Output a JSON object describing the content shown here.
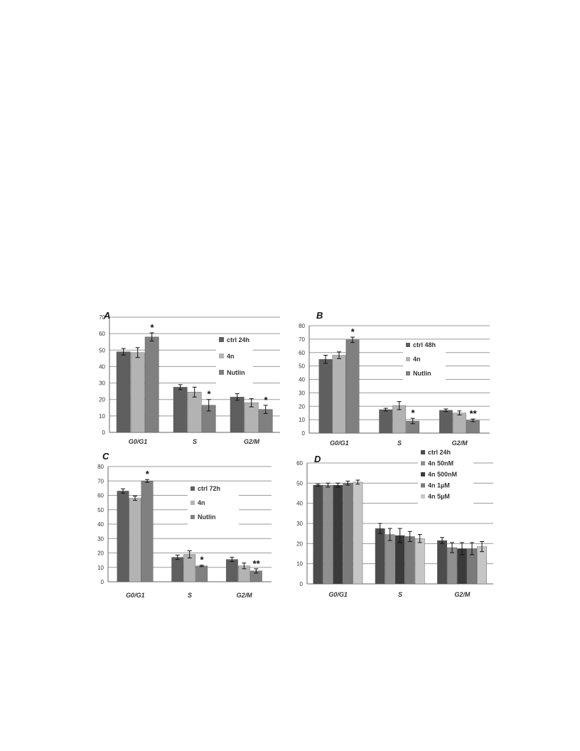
{
  "chart_data": [
    {
      "type": "bar",
      "panel_label": "A",
      "categories": [
        "G0/G1",
        "S",
        "G2/M"
      ],
      "ylim": [
        0,
        70
      ],
      "yticks": [
        0,
        10,
        20,
        30,
        40,
        50,
        60,
        70
      ],
      "grid": true,
      "legend_position": "right",
      "series": [
        {
          "name": "ctrl 24h",
          "color": "#5f5f5f",
          "values": [
            49,
            27.5,
            21.5
          ],
          "errors": [
            2,
            1.5,
            2
          ]
        },
        {
          "name": "4n",
          "color": "#b3b3b3",
          "values": [
            48.5,
            24.5,
            18
          ],
          "errors": [
            3,
            3,
            2.5
          ]
        },
        {
          "name": "Nutlin",
          "color": "#808080",
          "values": [
            58,
            16.5,
            14
          ],
          "errors": [
            2.5,
            3.5,
            2.5
          ]
        }
      ],
      "annotations": [
        {
          "series": 2,
          "category": 0,
          "text": "*"
        },
        {
          "series": 2,
          "category": 1,
          "text": "*"
        },
        {
          "series": 2,
          "category": 2,
          "text": "*"
        }
      ]
    },
    {
      "type": "bar",
      "panel_label": "B",
      "categories": [
        "G0/G1",
        "S",
        "G2/M"
      ],
      "ylim": [
        0,
        80
      ],
      "yticks": [
        0,
        10,
        20,
        30,
        40,
        50,
        60,
        70,
        80
      ],
      "grid": true,
      "legend_position": "right",
      "series": [
        {
          "name": "ctrl 48h",
          "color": "#5f5f5f",
          "values": [
            55,
            17.5,
            17
          ],
          "errors": [
            3,
            1,
            1
          ]
        },
        {
          "name": "4n",
          "color": "#b3b3b3",
          "values": [
            58,
            20.5,
            15
          ],
          "errors": [
            2.5,
            3,
            1.5
          ]
        },
        {
          "name": "Nutlin",
          "color": "#808080",
          "values": [
            69.5,
            9,
            9.5
          ],
          "errors": [
            2,
            2,
            1
          ]
        }
      ],
      "annotations": [
        {
          "series": 2,
          "category": 0,
          "text": "*"
        },
        {
          "series": 2,
          "category": 1,
          "text": "*"
        },
        {
          "series": 2,
          "category": 2,
          "text": "**"
        }
      ]
    },
    {
      "type": "bar",
      "panel_label": "C",
      "categories": [
        "G0/G1",
        "S",
        "G2/M"
      ],
      "ylim": [
        0,
        80
      ],
      "yticks": [
        0,
        10,
        20,
        30,
        40,
        50,
        60,
        70,
        80
      ],
      "grid": true,
      "legend_position": "right",
      "series": [
        {
          "name": "ctrl 72h",
          "color": "#5f5f5f",
          "values": [
            63,
            17,
            15.5
          ],
          "errors": [
            1.5,
            1.5,
            1.5
          ]
        },
        {
          "name": "4n",
          "color": "#b3b3b3",
          "values": [
            58,
            19,
            11
          ],
          "errors": [
            1.5,
            2.5,
            2
          ]
        },
        {
          "name": "Nutlin",
          "color": "#808080",
          "values": [
            70,
            11,
            7.5
          ],
          "errors": [
            1,
            0.5,
            1.5
          ]
        }
      ],
      "annotations": [
        {
          "series": 2,
          "category": 0,
          "text": "*"
        },
        {
          "series": 2,
          "category": 1,
          "text": "*"
        },
        {
          "series": 2,
          "category": 2,
          "text": "**"
        }
      ]
    },
    {
      "type": "bar",
      "panel_label": "D",
      "categories": [
        "G0/G1",
        "S",
        "G2/M"
      ],
      "ylim": [
        0,
        60
      ],
      "yticks": [
        0,
        10,
        20,
        30,
        40,
        50,
        60
      ],
      "grid": true,
      "legend_position": "top-right",
      "series": [
        {
          "name": "ctrl 24h",
          "color": "#4c4c4c",
          "values": [
            49,
            27.5,
            21.5
          ],
          "errors": [
            0.5,
            2.5,
            1.5
          ]
        },
        {
          "name": "4n 50nM",
          "color": "#8f8f8f",
          "values": [
            49,
            24.5,
            18
          ],
          "errors": [
            1,
            3,
            2.5
          ]
        },
        {
          "name": "4n 500nM",
          "color": "#3a3a3a",
          "values": [
            49,
            24,
            17.5
          ],
          "errors": [
            1,
            3.5,
            3
          ]
        },
        {
          "name": "4n 1µM",
          "color": "#7a7a7a",
          "values": [
            50,
            23.5,
            17.5
          ],
          "errors": [
            1,
            2.5,
            3
          ]
        },
        {
          "name": "4n 5µM",
          "color": "#c6c6c6",
          "values": [
            50.5,
            22.5,
            18.5
          ],
          "errors": [
            1,
            2,
            2.5
          ]
        }
      ],
      "annotations": []
    }
  ]
}
